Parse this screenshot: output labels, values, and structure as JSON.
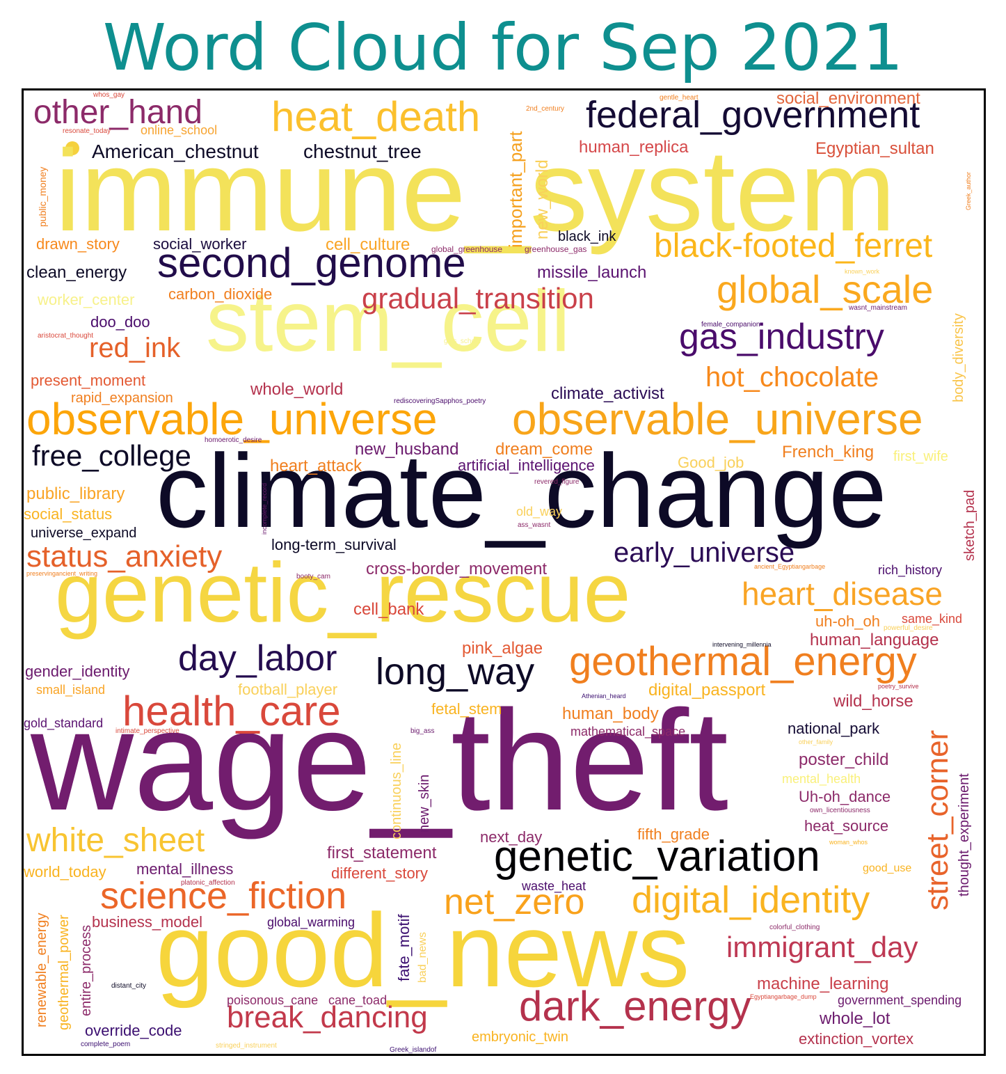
{
  "title": "Word Cloud for Sep 2021",
  "colors": {
    "title": "#0e8f8f",
    "frame": "#000000",
    "dark_navy": "#0d0a26",
    "purple": "#6b1a6d",
    "indigo": "#3b0f70",
    "crimson": "#c73e4c",
    "red_orange": "#e35933",
    "orange": "#f88f1a",
    "amber": "#fbb61a",
    "gold": "#f5d13e",
    "pale_yellow": "#f7f590"
  },
  "words": [
    {
      "text": "immune_system",
      "color": "#f3e25a"
    },
    {
      "text": "climate_change",
      "color": "#0d0a26"
    },
    {
      "text": "wage_theft",
      "color": "#721d6e"
    },
    {
      "text": "genetic_rescue",
      "color": "#f5d642"
    },
    {
      "text": "good_news",
      "color": "#f6d53c"
    },
    {
      "text": "stem_cell",
      "color": "#f6f38a"
    },
    {
      "text": "observable_universe",
      "color": "#fca50a"
    },
    {
      "text": "observable_universe",
      "color": "#f8a51a"
    },
    {
      "text": "second_genome",
      "color": "#210c4a"
    },
    {
      "text": "federal_government",
      "color": "#140b34"
    },
    {
      "text": "heat_death",
      "color": "#fbc02d"
    },
    {
      "text": "black-footed_ferret",
      "color": "#fbb61a"
    },
    {
      "text": "gas_industry",
      "color": "#4a0c6b"
    },
    {
      "text": "global_scale",
      "color": "#faa81e"
    },
    {
      "text": "other_hand",
      "color": "#8c2a69"
    },
    {
      "text": "gradual_transition",
      "color": "#c9404a"
    },
    {
      "text": "hot_chocolate",
      "color": "#f7891c"
    },
    {
      "text": "free_college",
      "color": "#0d0a26"
    },
    {
      "text": "red_ink",
      "color": "#e5612a"
    },
    {
      "text": "status_anxiety",
      "color": "#e5612a"
    },
    {
      "text": "early_universe",
      "color": "#2b0c55"
    },
    {
      "text": "heart_disease",
      "color": "#f9a425"
    },
    {
      "text": "day_labor",
      "color": "#240c4f"
    },
    {
      "text": "long_way",
      "color": "#0d0a26"
    },
    {
      "text": "geothermal_energy",
      "color": "#f07f1f"
    },
    {
      "text": "health_care",
      "color": "#d9483b"
    },
    {
      "text": "genetic_variation",
      "color": "#000004"
    },
    {
      "text": "white_sheet",
      "color": "#f8c431"
    },
    {
      "text": "science_fiction",
      "color": "#eb6628"
    },
    {
      "text": "net_zero",
      "color": "#f9a21c"
    },
    {
      "text": "digital_identity",
      "color": "#f9b320"
    },
    {
      "text": "street_corner",
      "color": "#e8632a"
    },
    {
      "text": "immigrant_day",
      "color": "#be3853"
    },
    {
      "text": "dark_energy",
      "color": "#b4324d"
    },
    {
      "text": "break_dancing",
      "color": "#c2394b"
    },
    {
      "text": "American_chestnut",
      "color": "#0d0a26"
    },
    {
      "text": "chestnut_tree",
      "color": "#0d0a26"
    },
    {
      "text": "important_part",
      "color": "#f5a01d"
    },
    {
      "text": "new_world",
      "color": "#f9d05a"
    },
    {
      "text": "human_replica",
      "color": "#d5484a"
    },
    {
      "text": "Egyptian_sultan",
      "color": "#d9503a"
    },
    {
      "text": "social_environment",
      "color": "#e2643a"
    },
    {
      "text": "online_school",
      "color": "#f7a431"
    },
    {
      "text": "black_ink",
      "color": "#0d0a26"
    },
    {
      "text": "drawn_story",
      "color": "#f7891c"
    },
    {
      "text": "social_worker",
      "color": "#1a0c3e"
    },
    {
      "text": "cell_culture",
      "color": "#f9a425"
    },
    {
      "text": "global_greenhouse",
      "color": "#8c2a69"
    },
    {
      "text": "greenhouse_gas",
      "color": "#8c2a69"
    },
    {
      "text": "clean_energy",
      "color": "#0d0a26"
    },
    {
      "text": "missile_launch",
      "color": "#5a1270"
    },
    {
      "text": "carbon_dioxide",
      "color": "#f07f1f"
    },
    {
      "text": "worker_center",
      "color": "#f7f18a"
    },
    {
      "text": "doo_doo",
      "color": "#4a0c6b"
    },
    {
      "text": "present_moment",
      "color": "#e35933"
    },
    {
      "text": "rapid_expansion",
      "color": "#f07f1f"
    },
    {
      "text": "whole_world",
      "color": "#b4324d"
    },
    {
      "text": "climate_activist",
      "color": "#2b0c55"
    },
    {
      "text": "body_diversity",
      "color": "#f9c44a"
    },
    {
      "text": "new_husband",
      "color": "#6b1a6d"
    },
    {
      "text": "dream_come",
      "color": "#f07f1f"
    },
    {
      "text": "French_king",
      "color": "#f07f1f"
    },
    {
      "text": "first_wife",
      "color": "#f9f07a"
    },
    {
      "text": "heart_attack",
      "color": "#f07f1f"
    },
    {
      "text": "artificial_intelligence",
      "color": "#5a1270"
    },
    {
      "text": "Good_job",
      "color": "#f9d05a"
    },
    {
      "text": "public_library",
      "color": "#f9a425"
    },
    {
      "text": "social_status",
      "color": "#f9b320"
    },
    {
      "text": "universe_expand",
      "color": "#0d0a26"
    },
    {
      "text": "old_way",
      "color": "#f9d05a"
    },
    {
      "text": "long-term_survival",
      "color": "#0d0a26"
    },
    {
      "text": "sketch_pad",
      "color": "#b4324d"
    },
    {
      "text": "cross-border_movement",
      "color": "#8c2a69"
    },
    {
      "text": "rich_history",
      "color": "#4a0c6b"
    },
    {
      "text": "cell_bank",
      "color": "#d9483b"
    },
    {
      "text": "uh-oh_oh",
      "color": "#f07f1f"
    },
    {
      "text": "same_kind",
      "color": "#d9483b"
    },
    {
      "text": "human_language",
      "color": "#b4324d"
    },
    {
      "text": "pink_algae",
      "color": "#e35933"
    },
    {
      "text": "gender_identity",
      "color": "#6b1a6d"
    },
    {
      "text": "small_island",
      "color": "#f9a425"
    },
    {
      "text": "football_player",
      "color": "#f9d05a"
    },
    {
      "text": "digital_passport",
      "color": "#f9b320"
    },
    {
      "text": "wild_horse",
      "color": "#b4324d"
    },
    {
      "text": "fetal_stem",
      "color": "#f9b320"
    },
    {
      "text": "human_body",
      "color": "#f07f1f"
    },
    {
      "text": "continuous_line",
      "color": "#f9d05a"
    },
    {
      "text": "gold_standard",
      "color": "#5a1270"
    },
    {
      "text": "mathematical_space",
      "color": "#8c2a69"
    },
    {
      "text": "national_park",
      "color": "#140b34"
    },
    {
      "text": "poster_child",
      "color": "#8c2a69"
    },
    {
      "text": "mental_health",
      "color": "#f9f07a"
    },
    {
      "text": "Uh-oh_dance",
      "color": "#8c2a69"
    },
    {
      "text": "thought_experiment",
      "color": "#6b1a6d"
    },
    {
      "text": "new_skin",
      "color": "#6b1a6d"
    },
    {
      "text": "next_day",
      "color": "#8c2a69"
    },
    {
      "text": "fifth_grade",
      "color": "#f07f1f"
    },
    {
      "text": "heat_source",
      "color": "#8c2a69"
    },
    {
      "text": "first_statement",
      "color": "#8c2a69"
    },
    {
      "text": "world_today",
      "color": "#f9b320"
    },
    {
      "text": "mental_illness",
      "color": "#6b1a6d"
    },
    {
      "text": "different_story",
      "color": "#d9483b"
    },
    {
      "text": "good_use",
      "color": "#f9b320"
    },
    {
      "text": "waste_heat",
      "color": "#4a0c6b"
    },
    {
      "text": "renewable_energy",
      "color": "#f07f1f"
    },
    {
      "text": "geothermal_power",
      "color": "#f9b320"
    },
    {
      "text": "entire_process",
      "color": "#8c2a69"
    },
    {
      "text": "business_model",
      "color": "#b4324d"
    },
    {
      "text": "global_warming",
      "color": "#4a0c6b"
    },
    {
      "text": "fate_motif",
      "color": "#3b0f70"
    },
    {
      "text": "bad_news",
      "color": "#f9d05a"
    },
    {
      "text": "machine_learning",
      "color": "#c9404a"
    },
    {
      "text": "government_spending",
      "color": "#6b1a6d"
    },
    {
      "text": "whole_lot",
      "color": "#6b1a6d"
    },
    {
      "text": "extinction_vortex",
      "color": "#b4324d"
    },
    {
      "text": "poisonous_cane",
      "color": "#8c2a69"
    },
    {
      "text": "cane_toad",
      "color": "#8c2a69"
    },
    {
      "text": "override_code",
      "color": "#3b0f70"
    },
    {
      "text": "embryonic_twin",
      "color": "#f9b320"
    },
    {
      "text": "public_money",
      "color": "#f07f1f"
    },
    {
      "text": "resonate_today",
      "color": "#d9483b"
    },
    {
      "text": "whos_gay",
      "color": "#d9483b"
    },
    {
      "text": "gentle_heart",
      "color": "#f07f1f"
    },
    {
      "text": "2nd_century",
      "color": "#f07f1f"
    },
    {
      "text": "Greek_author",
      "color": "#f07f1f"
    },
    {
      "text": "known_work",
      "color": "#f9d05a"
    },
    {
      "text": "wasnt_mainstream",
      "color": "#6b1a6d"
    },
    {
      "text": "female_companion",
      "color": "#4a0c6b"
    },
    {
      "text": "aristocrat_thought",
      "color": "#d9483b"
    },
    {
      "text": "girls_school",
      "color": "#f7f18a"
    },
    {
      "text": "rediscoveringSapphos_poetry",
      "color": "#4a0c6b"
    },
    {
      "text": "homoerotic_desire",
      "color": "#6b1a6d"
    },
    {
      "text": "incomplete_record",
      "color": "#6b1a6d"
    },
    {
      "text": "revered_figure",
      "color": "#8c2a69"
    },
    {
      "text": "ass_wasnt",
      "color": "#8c2a69"
    },
    {
      "text": "preservingancient_writing",
      "color": "#f07f1f"
    },
    {
      "text": "booty_cam",
      "color": "#8c2a69"
    },
    {
      "text": "ancient_Egyptiangarbage",
      "color": "#f07f1f"
    },
    {
      "text": "powerful_desire",
      "color": "#f9d05a"
    },
    {
      "text": "intervening_millennia",
      "color": "#0d0a26"
    },
    {
      "text": "poetry_survive",
      "color": "#b4324d"
    },
    {
      "text": "Athenian_heard",
      "color": "#3b0f70"
    },
    {
      "text": "intimate_perspective",
      "color": "#d9483b"
    },
    {
      "text": "big_ass",
      "color": "#6b1a6d"
    },
    {
      "text": "other_family",
      "color": "#f9d05a"
    },
    {
      "text": "own_licentiousness",
      "color": "#8c2a69"
    },
    {
      "text": "woman_whos",
      "color": "#f9b320"
    },
    {
      "text": "platonic_affection",
      "color": "#b4324d"
    },
    {
      "text": "colorful_clothing",
      "color": "#8c2a69"
    },
    {
      "text": "distant_city",
      "color": "#0d0a26"
    },
    {
      "text": "Egyptiangarbage_dump",
      "color": "#d9483b"
    },
    {
      "text": "complete_poem",
      "color": "#3b0f70"
    },
    {
      "text": "stringed_instrument",
      "color": "#f9d05a"
    },
    {
      "text": "Greek_islandof",
      "color": "#3b0f70"
    }
  ]
}
